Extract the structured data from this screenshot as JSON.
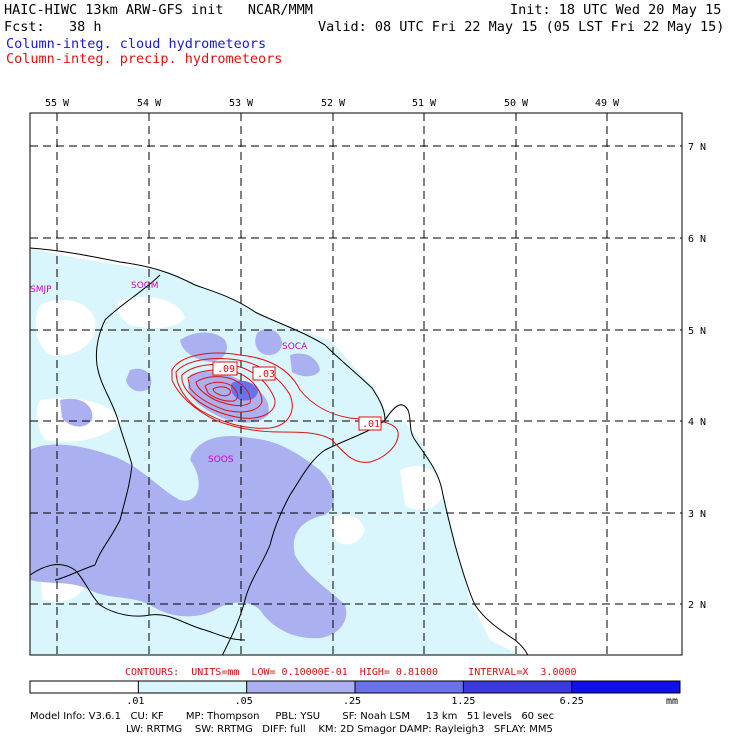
{
  "header": {
    "title_left": "HAIC-HIWC 13km ARW-GFS init   NCAR/MMM",
    "init": "Init: 18 UTC Wed 20 May 15",
    "fcst": "Fcst:   38 h",
    "valid": "Valid: 08 UTC Fri 22 May 15 (05 LST Fri 22 May 15)",
    "field1": "Column-integ. cloud hydrometeors",
    "field2": "Column-integ. precip. hydrometeors"
  },
  "colors": {
    "field1": "#1a1ad0",
    "field2": "#e01010",
    "fill_low": "#d8f6fb",
    "fill_mid": "#aab0f0",
    "fill_high": "#6a72ea",
    "contour": "#e01010",
    "station": "#cc00cc"
  },
  "lon_labels": [
    "55 W",
    "54 W",
    "53 W",
    "52 W",
    "51 W",
    "50 W",
    "49 W"
  ],
  "lat_labels": [
    "7 N",
    "6 N",
    "5 N",
    "4 N",
    "3 N",
    "2 N"
  ],
  "stations": [
    "SMJP",
    "SOGM",
    "SOCA",
    "SOOS"
  ],
  "contour_labels": [
    ".09",
    ".03",
    ".01"
  ],
  "contours_info": "CONTOURS:  UNITS=mm  LOW= 0.10000E-01  HIGH= 0.81000     INTERVAL=X  3.0000",
  "colorbar": {
    "ticks": [
      ".01",
      ".05",
      ".25",
      "1.25",
      "6.25"
    ],
    "unit": "mm",
    "colors": [
      "#ffffff",
      "#d8f6fb",
      "#aab0f0",
      "#6a72ea",
      "#3a3ae0",
      "#1010ee"
    ]
  },
  "model_info": {
    "line1": "Model Info: V3.6.1   CU: KF       MP: Thompson     PBL: YSU       SF: Noah LSM     13 km   51 levels   60 sec",
    "line2": "LW: RRTMG    SW: RRTMG   DIFF: full    KM: 2D Smagor DAMP: Rayleigh3   SFLAY: MM5"
  }
}
